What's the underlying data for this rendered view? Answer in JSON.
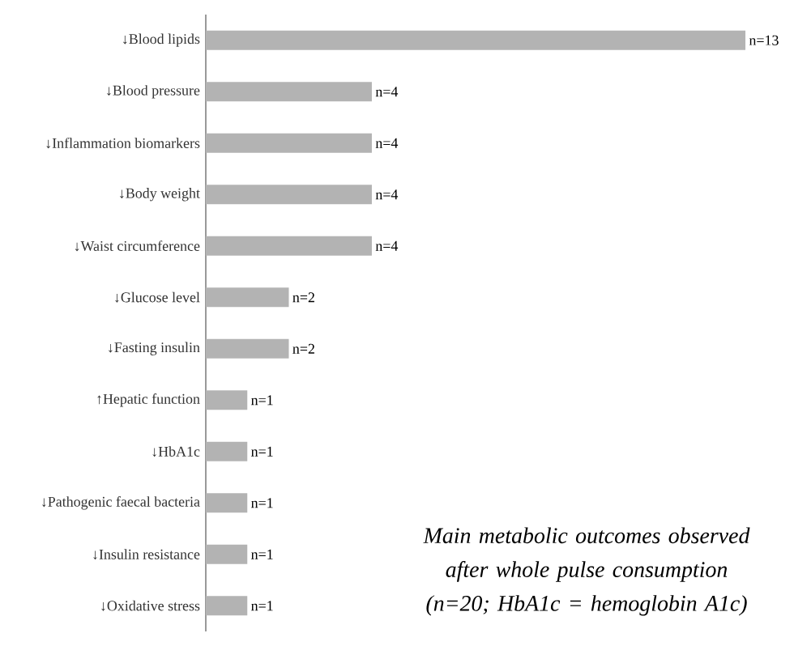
{
  "chart_data": {
    "type": "bar",
    "orientation": "horizontal",
    "tick_labels": "y",
    "categories": [
      "↓Blood lipids",
      "↓Blood pressure",
      "↓Inflammation biomarkers",
      "↓Body weight",
      "↓Waist circumference",
      "↓Glucose level",
      "↓Fasting insulin",
      "↑Hepatic function",
      "↓HbA1c",
      "↓Pathogenic faecal bacteria",
      "↓Insulin resistance",
      "↓Oxidative stress"
    ],
    "values": [
      13,
      4,
      4,
      4,
      4,
      2,
      2,
      1,
      1,
      1,
      1,
      1
    ],
    "value_labels": [
      "n=13",
      "n=4",
      "n=4",
      "n=4",
      "n=4",
      "n=2",
      "n=2",
      "n=1",
      "n=1",
      "n=1",
      "n=1",
      "n=1"
    ],
    "color": "#b3b3b3",
    "annotations": [
      "Main metabolic outcomes observed after whole pulse consumption (n=20; HbA1c = hemoglobin A1c)"
    ]
  }
}
